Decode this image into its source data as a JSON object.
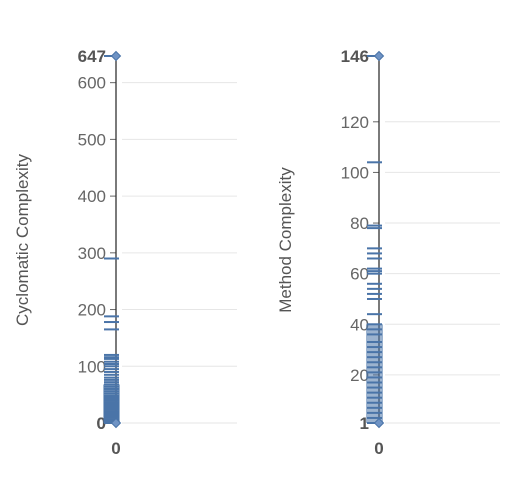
{
  "chart_data": [
    {
      "type": "scatter",
      "ylabel": "Cyclomatic Complexity",
      "x_ticks": [
        "0"
      ],
      "ylim": [
        0,
        647
      ],
      "y_ticks": [
        0,
        100,
        200,
        300,
        400,
        500,
        600
      ],
      "y_extreme_labels": [
        "0",
        "647"
      ],
      "grid": true,
      "accent_color": "#4a74a8",
      "x": 0,
      "values": [
        647,
        290,
        188,
        178,
        165,
        120,
        116,
        113,
        108,
        104,
        100,
        95,
        90,
        85,
        80,
        76,
        72,
        68,
        64,
        60,
        56,
        52,
        48,
        45,
        42,
        39,
        36,
        33,
        30,
        27,
        24,
        21,
        18,
        15,
        12,
        9,
        6,
        3,
        0
      ]
    },
    {
      "type": "scatter",
      "ylabel": "Method Complexity",
      "x_ticks": [
        "0"
      ],
      "ylim": [
        1,
        146
      ],
      "y_ticks": [
        20,
        40,
        60,
        80,
        100,
        120
      ],
      "y_extreme_labels": [
        "1",
        "146"
      ],
      "grid": true,
      "accent_color": "#4a74a8",
      "x": 0,
      "values": [
        146,
        104,
        79,
        78,
        70,
        68,
        66,
        62,
        61,
        60,
        56,
        54,
        52,
        50,
        44,
        40,
        38,
        36,
        33,
        31,
        29,
        27,
        25,
        23,
        21,
        19,
        17,
        15,
        13,
        11,
        9,
        7,
        5,
        3,
        1
      ]
    }
  ]
}
